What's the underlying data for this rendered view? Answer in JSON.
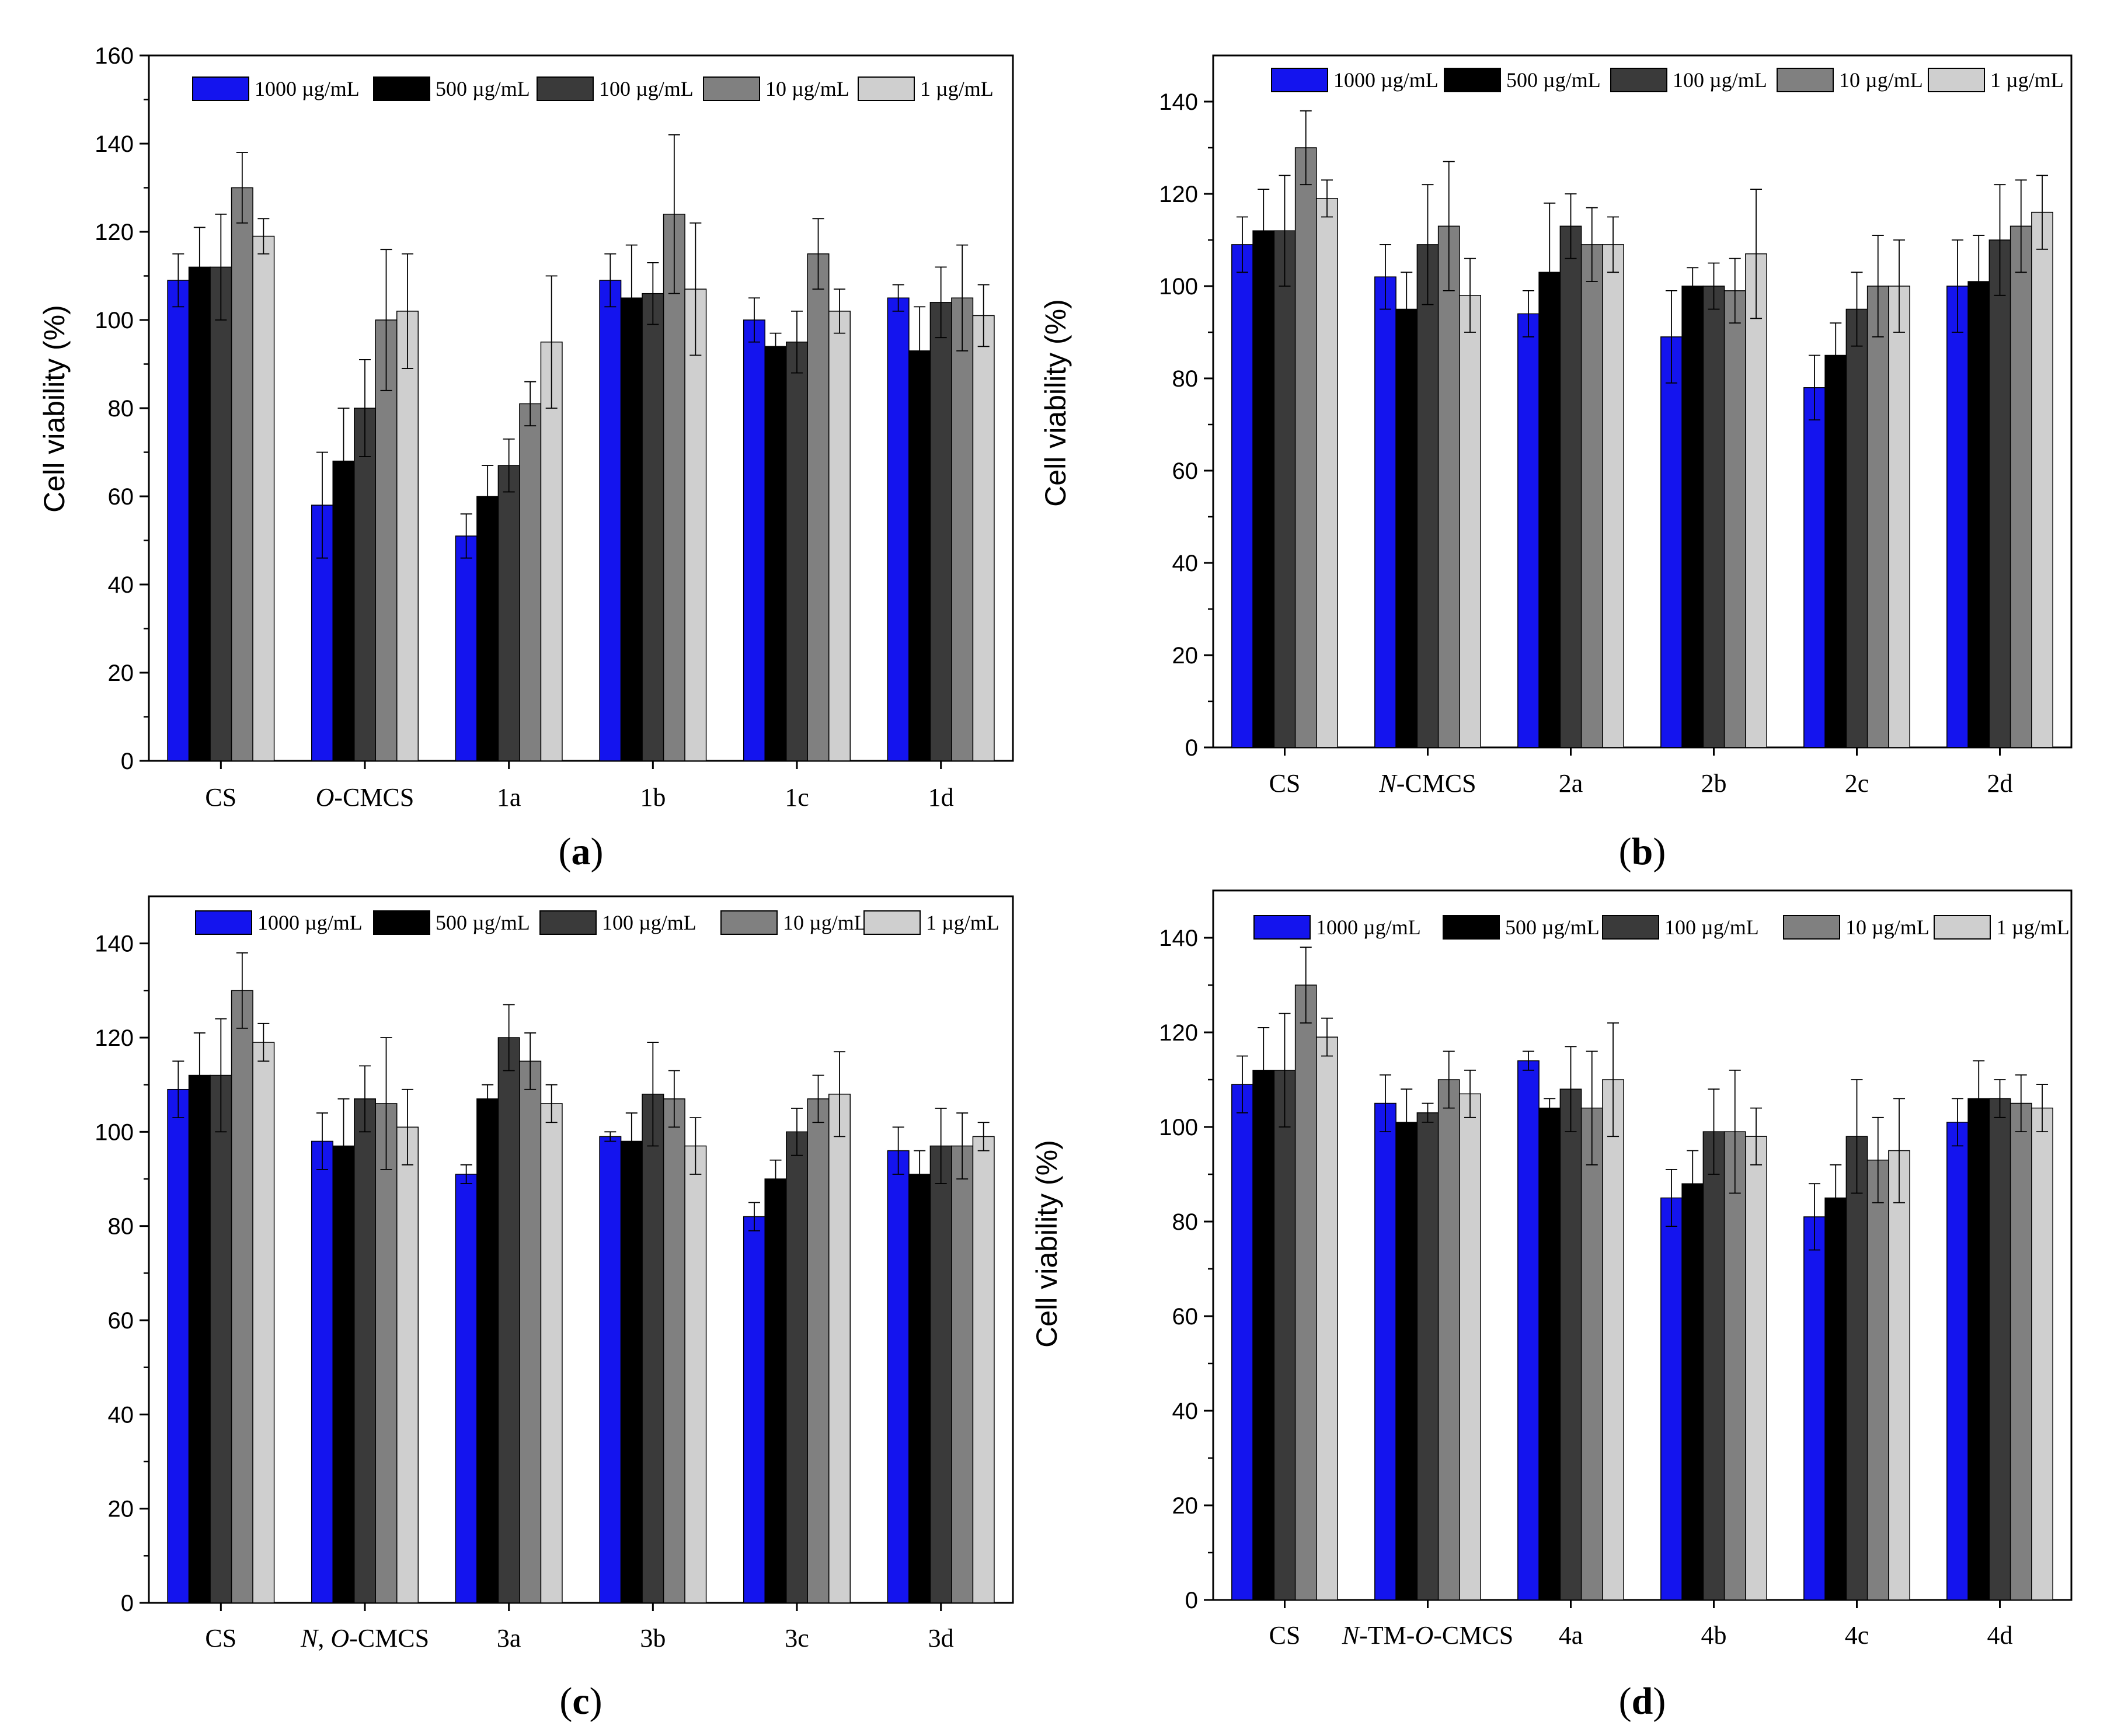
{
  "legend_labels": [
    "1000 µg/mL",
    "500 µg/mL",
    "100 µg/mL",
    "10 µg/mL",
    "1 µg/mL"
  ],
  "series_colors": [
    "#1414ee",
    "#000000",
    "#3a3a3a",
    "#808080",
    "#cfcfcf"
  ],
  "chart_data": [
    {
      "type": "bar",
      "panel": "a",
      "ylabel": "Cell viability (%)",
      "ylim": [
        0,
        160
      ],
      "yticks": [
        0,
        20,
        40,
        60,
        80,
        100,
        120,
        140,
        160
      ],
      "legend_position": "top-right",
      "categories": [
        [
          {
            "t": "CS",
            "i": false
          }
        ],
        [
          {
            "t": "O",
            "i": true
          },
          {
            "t": "-CMCS",
            "i": false
          }
        ],
        [
          {
            "t": "1a",
            "i": false
          }
        ],
        [
          {
            "t": "1b",
            "i": false
          }
        ],
        [
          {
            "t": "1c",
            "i": false
          }
        ],
        [
          {
            "t": "1d",
            "i": false
          }
        ]
      ],
      "series": [
        {
          "name": "1000 µg/mL",
          "values": [
            109,
            58,
            51,
            109,
            100,
            105
          ],
          "errors": [
            6,
            12,
            5,
            6,
            5,
            3
          ]
        },
        {
          "name": "500 µg/mL",
          "values": [
            112,
            68,
            60,
            105,
            94,
            93
          ],
          "errors": [
            9,
            12,
            7,
            12,
            3,
            10
          ]
        },
        {
          "name": "100 µg/mL",
          "values": [
            112,
            80,
            67,
            106,
            95,
            104
          ],
          "errors": [
            12,
            11,
            6,
            7,
            7,
            8
          ]
        },
        {
          "name": "10 µg/mL",
          "values": [
            130,
            100,
            81,
            124,
            115,
            105
          ],
          "errors": [
            8,
            16,
            5,
            18,
            8,
            12
          ]
        },
        {
          "name": "1 µg/mL",
          "values": [
            119,
            102,
            95,
            107,
            102,
            101
          ],
          "errors": [
            4,
            13,
            15,
            15,
            5,
            7
          ]
        }
      ]
    },
    {
      "type": "bar",
      "panel": "b",
      "ylabel": "Cell viability (%)",
      "ylim": [
        0,
        150
      ],
      "yticks": [
        0,
        20,
        40,
        60,
        80,
        100,
        120,
        140
      ],
      "legend_position": "top",
      "categories": [
        [
          {
            "t": "CS",
            "i": false
          }
        ],
        [
          {
            "t": "N",
            "i": true
          },
          {
            "t": "-CMCS",
            "i": false
          }
        ],
        [
          {
            "t": "2a",
            "i": false
          }
        ],
        [
          {
            "t": "2b",
            "i": false
          }
        ],
        [
          {
            "t": "2c",
            "i": false
          }
        ],
        [
          {
            "t": "2d",
            "i": false
          }
        ]
      ],
      "series": [
        {
          "name": "1000 µg/mL",
          "values": [
            109,
            102,
            94,
            89,
            78,
            100
          ],
          "errors": [
            6,
            7,
            5,
            10,
            7,
            10
          ]
        },
        {
          "name": "500 µg/mL",
          "values": [
            112,
            95,
            103,
            100,
            85,
            101
          ],
          "errors": [
            9,
            8,
            15,
            4,
            7,
            10
          ]
        },
        {
          "name": "100 µg/mL",
          "values": [
            112,
            109,
            113,
            100,
            95,
            110
          ],
          "errors": [
            12,
            13,
            7,
            5,
            8,
            12
          ]
        },
        {
          "name": "10 µg/mL",
          "values": [
            130,
            113,
            109,
            99,
            100,
            113
          ],
          "errors": [
            8,
            14,
            8,
            7,
            11,
            10
          ]
        },
        {
          "name": "1 µg/mL",
          "values": [
            119,
            98,
            109,
            107,
            100,
            116
          ],
          "errors": [
            4,
            8,
            6,
            14,
            10,
            8
          ]
        }
      ]
    },
    {
      "type": "bar",
      "panel": "c",
      "ylabel": "Cell viability (%)",
      "ylim": [
        0,
        150
      ],
      "yticks": [
        0,
        20,
        40,
        60,
        80,
        100,
        120,
        140
      ],
      "legend_position": "top-right",
      "categories": [
        [
          {
            "t": "CS",
            "i": false
          }
        ],
        [
          {
            "t": "N",
            "i": true
          },
          {
            "t": ", ",
            "i": false
          },
          {
            "t": "O",
            "i": true
          },
          {
            "t": "-CMCS",
            "i": false
          }
        ],
        [
          {
            "t": "3a",
            "i": false
          }
        ],
        [
          {
            "t": "3b",
            "i": false
          }
        ],
        [
          {
            "t": "3c",
            "i": false
          }
        ],
        [
          {
            "t": "3d",
            "i": false
          }
        ]
      ],
      "series": [
        {
          "name": "1000 µg/mL",
          "values": [
            109,
            98,
            91,
            99,
            82,
            96
          ],
          "errors": [
            6,
            6,
            2,
            1,
            3,
            5
          ]
        },
        {
          "name": "500 µg/mL",
          "values": [
            112,
            97,
            107,
            98,
            90,
            91
          ],
          "errors": [
            9,
            10,
            3,
            6,
            4,
            5
          ]
        },
        {
          "name": "100 µg/mL",
          "values": [
            112,
            107,
            120,
            108,
            100,
            97
          ],
          "errors": [
            12,
            7,
            7,
            11,
            5,
            8
          ]
        },
        {
          "name": "10 µg/mL",
          "values": [
            130,
            106,
            115,
            107,
            107,
            97
          ],
          "errors": [
            8,
            14,
            6,
            6,
            5,
            7
          ]
        },
        {
          "name": "1 µg/mL",
          "values": [
            119,
            101,
            106,
            97,
            108,
            99
          ],
          "errors": [
            4,
            8,
            4,
            6,
            9,
            3
          ]
        }
      ]
    },
    {
      "type": "bar",
      "panel": "d",
      "ylabel": "Cell viability (%)",
      "ylim": [
        0,
        150
      ],
      "yticks": [
        0,
        20,
        40,
        60,
        80,
        100,
        120,
        140
      ],
      "legend_position": "top",
      "categories": [
        [
          {
            "t": "CS",
            "i": false
          }
        ],
        [
          {
            "t": "N",
            "i": true
          },
          {
            "t": "-TM-",
            "i": false
          },
          {
            "t": "O",
            "i": true
          },
          {
            "t": "-CMCS",
            "i": false
          }
        ],
        [
          {
            "t": "4a",
            "i": false
          }
        ],
        [
          {
            "t": "4b",
            "i": false
          }
        ],
        [
          {
            "t": "4c",
            "i": false
          }
        ],
        [
          {
            "t": "4d",
            "i": false
          }
        ]
      ],
      "series": [
        {
          "name": "1000 µg/mL",
          "values": [
            109,
            105,
            114,
            85,
            81,
            101
          ],
          "errors": [
            6,
            6,
            2,
            6,
            7,
            5
          ]
        },
        {
          "name": "500 µg/mL",
          "values": [
            112,
            101,
            104,
            88,
            85,
            106
          ],
          "errors": [
            9,
            7,
            2,
            7,
            7,
            8
          ]
        },
        {
          "name": "100 µg/mL",
          "values": [
            112,
            103,
            108,
            99,
            98,
            106
          ],
          "errors": [
            12,
            2,
            9,
            9,
            12,
            4
          ]
        },
        {
          "name": "10 µg/mL",
          "values": [
            130,
            110,
            104,
            99,
            93,
            105
          ],
          "errors": [
            8,
            6,
            12,
            13,
            9,
            6
          ]
        },
        {
          "name": "1 µg/mL",
          "values": [
            119,
            107,
            110,
            98,
            95,
            104
          ],
          "errors": [
            4,
            5,
            12,
            6,
            11,
            5
          ]
        }
      ]
    }
  ]
}
